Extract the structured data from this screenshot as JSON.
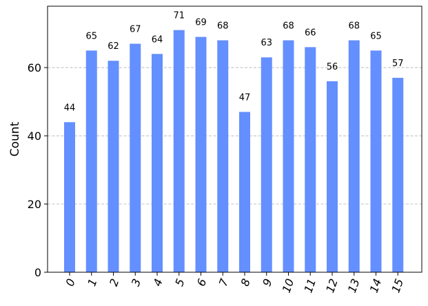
{
  "chart_data": {
    "type": "bar",
    "categories": [
      "0",
      "1",
      "2",
      "3",
      "4",
      "5",
      "6",
      "7",
      "8",
      "9",
      "10",
      "11",
      "12",
      "13",
      "14",
      "15"
    ],
    "values": [
      44,
      65,
      62,
      67,
      64,
      71,
      69,
      68,
      47,
      63,
      68,
      66,
      56,
      68,
      65,
      57
    ],
    "title": "",
    "xlabel": "",
    "ylabel": "Count",
    "ylim": [
      0,
      78
    ],
    "yticks": [
      0,
      20,
      40,
      60
    ],
    "grid": "horizontal dashed",
    "x_tick_rotation": -70,
    "bar_color": "#648fff"
  }
}
